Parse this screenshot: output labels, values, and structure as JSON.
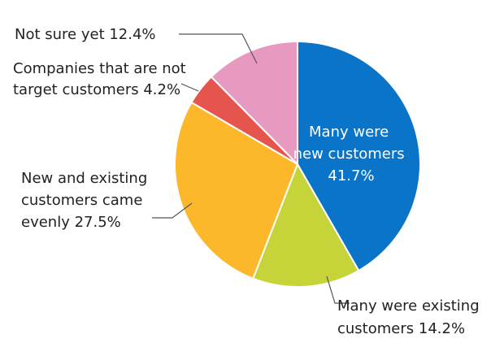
{
  "chart_data": {
    "type": "pie",
    "start": "12 o'clock",
    "direction": "clockwise",
    "slices": [
      {
        "label_lines": [
          "Many were",
          "new customers",
          "41.7%"
        ],
        "value": 41.7,
        "color": "#0a74c9"
      },
      {
        "label_lines": [
          "Many were existing",
          "customers 14.2%"
        ],
        "value": 14.2,
        "color": "#c6d43a"
      },
      {
        "label_lines": [
          "New and existing",
          "customers came",
          "evenly   27.5%"
        ],
        "value": 27.5,
        "color": "#fcb82a"
      },
      {
        "label_lines": [
          "Companies that are not",
          "target customers 4.2%"
        ],
        "value": 4.2,
        "color": "#e5554e"
      },
      {
        "label_lines": [
          "Not sure yet   12.4%"
        ],
        "value": 12.4,
        "color": "#e899c0"
      }
    ]
  }
}
